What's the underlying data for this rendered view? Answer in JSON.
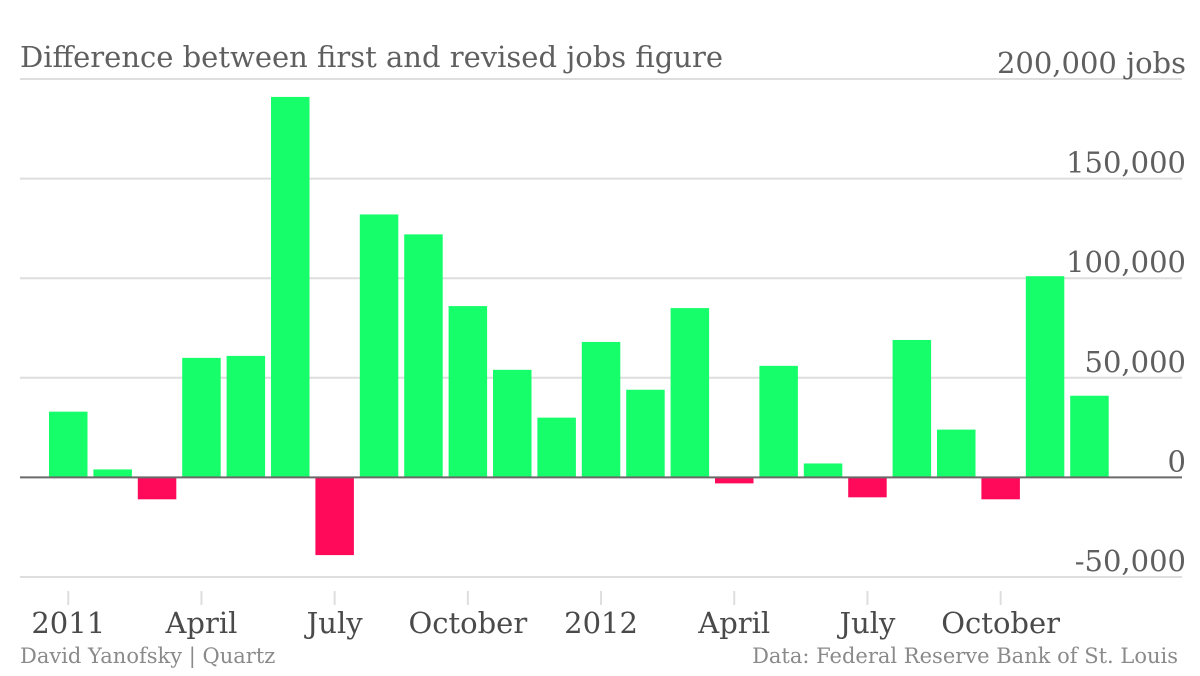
{
  "chart_data": {
    "type": "bar",
    "title": "Difference between first and revised jobs figure",
    "ylabel": "",
    "ylim": [
      -50000,
      200000
    ],
    "ytick_values": [
      200000,
      150000,
      100000,
      50000,
      0,
      -50000
    ],
    "ytick_labels": [
      "200,000 jobs",
      "150,000",
      "100,000",
      "50,000",
      "0",
      "-50,000"
    ],
    "x": [
      "2011-01",
      "2011-02",
      "2011-03",
      "2011-04",
      "2011-05",
      "2011-06",
      "2011-07",
      "2011-08",
      "2011-09",
      "2011-10",
      "2011-11",
      "2011-12",
      "2012-01",
      "2012-02",
      "2012-03",
      "2012-04",
      "2012-05",
      "2012-06",
      "2012-07",
      "2012-08",
      "2012-09",
      "2012-10",
      "2012-11",
      "2012-12"
    ],
    "xtick_labels": [
      {
        "x": "2011-01",
        "label": "2011"
      },
      {
        "x": "2011-04",
        "label": "April"
      },
      {
        "x": "2011-07",
        "label": "July"
      },
      {
        "x": "2011-10",
        "label": "October"
      },
      {
        "x": "2012-01",
        "label": "2012"
      },
      {
        "x": "2012-04",
        "label": "April"
      },
      {
        "x": "2012-07",
        "label": "July"
      },
      {
        "x": "2012-10",
        "label": "October"
      }
    ],
    "values": [
      33000,
      4000,
      -11000,
      60000,
      61000,
      191000,
      -39000,
      132000,
      122000,
      86000,
      54000,
      30000,
      68000,
      44000,
      85000,
      -3000,
      56000,
      7000,
      -10000,
      69000,
      24000,
      -11000,
      101000,
      41000
    ],
    "colors": {
      "positive": "#16ff6a",
      "negative": "#ff0a5a",
      "grid": "#dedede",
      "zero_line": "#6a6a6a"
    },
    "grid": true
  },
  "credits": {
    "author": "David Yanofsky | Quartz",
    "source": "Data: Federal Reserve Bank of St. Louis"
  }
}
